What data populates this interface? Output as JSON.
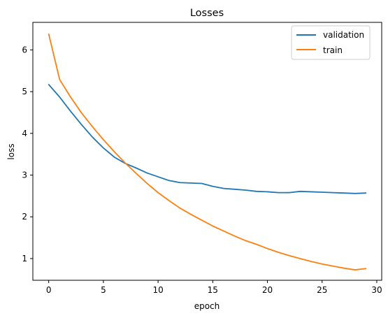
{
  "chart_data": {
    "type": "line",
    "title": "Losses",
    "xlabel": "epoch",
    "ylabel": "loss",
    "xlim": [
      -1.45,
      30.45
    ],
    "ylim": [
      0.48,
      6.66
    ],
    "xticks": [
      0,
      5,
      10,
      15,
      20,
      25,
      30
    ],
    "yticks": [
      1,
      2,
      3,
      4,
      5,
      6
    ],
    "grid": false,
    "legend_position": "top-right",
    "x": [
      0,
      1,
      2,
      3,
      4,
      5,
      6,
      7,
      8,
      9,
      10,
      11,
      12,
      13,
      14,
      15,
      16,
      17,
      18,
      19,
      20,
      21,
      22,
      23,
      24,
      25,
      26,
      27,
      28,
      29
    ],
    "series": [
      {
        "name": "validation",
        "color": "#1f77b4",
        "values": [
          5.17,
          4.87,
          4.53,
          4.21,
          3.91,
          3.65,
          3.43,
          3.28,
          3.17,
          3.05,
          2.96,
          2.87,
          2.82,
          2.81,
          2.8,
          2.73,
          2.68,
          2.66,
          2.64,
          2.61,
          2.6,
          2.58,
          2.58,
          2.61,
          2.6,
          2.59,
          2.58,
          2.57,
          2.56,
          2.57
        ]
      },
      {
        "name": "train",
        "color": "#ff7f0e",
        "values": [
          6.38,
          5.29,
          4.87,
          4.49,
          4.16,
          3.85,
          3.56,
          3.29,
          3.04,
          2.8,
          2.58,
          2.39,
          2.21,
          2.06,
          1.92,
          1.78,
          1.66,
          1.54,
          1.43,
          1.34,
          1.24,
          1.15,
          1.07,
          1.0,
          0.93,
          0.87,
          0.82,
          0.77,
          0.73,
          0.76
        ]
      }
    ]
  }
}
